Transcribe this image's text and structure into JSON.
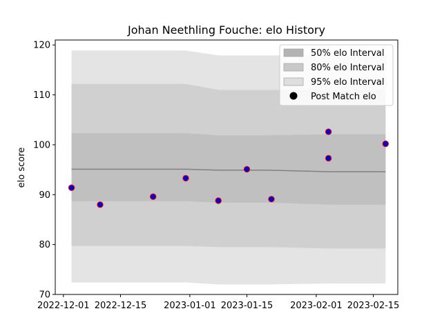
{
  "chart_data": {
    "type": "line",
    "title": "Johan Neethling Fouche: elo History",
    "xlabel": "",
    "ylabel": "elo score",
    "x_ticks": [
      "2022-12-01",
      "2022-12-15",
      "2023-01-01",
      "2023-01-15",
      "2023-02-01",
      "2023-02-15"
    ],
    "y_ticks": [
      70,
      80,
      90,
      100,
      110,
      120
    ],
    "xlim": [
      "2022-11-29",
      "2023-02-21"
    ],
    "ylim": [
      70,
      121
    ],
    "legend_position": "top-right",
    "legend": [
      {
        "label": "50% elo Interval",
        "color": "#b3b3b3"
      },
      {
        "label": "80% elo Interval",
        "color": "#c8c8c8"
      },
      {
        "label": "95% elo Interval",
        "color": "#dedede"
      },
      {
        "label": "Post Match elo",
        "color": "#000000"
      }
    ],
    "mean_line": {
      "x": [
        "2022-12-03",
        "2022-12-31",
        "2023-01-08",
        "2023-01-20",
        "2023-02-04",
        "2023-02-18"
      ],
      "y": [
        95.1,
        95.1,
        94.9,
        94.9,
        94.6,
        94.6
      ]
    },
    "bands": [
      {
        "name": "95% elo Interval",
        "color": "#e4e4e4",
        "x": [
          "2022-12-03",
          "2022-12-31",
          "2023-01-08",
          "2023-01-20",
          "2023-02-04",
          "2023-02-18"
        ],
        "upper": [
          118.9,
          118.9,
          117.9,
          117.9,
          117.9,
          117.9
        ],
        "lower": [
          72.4,
          72.4,
          72.0,
          72.0,
          72.2,
          72.2
        ]
      },
      {
        "name": "80% elo Interval",
        "color": "#d0d0d0",
        "x": [
          "2022-12-03",
          "2022-12-31",
          "2023-01-08",
          "2023-01-20",
          "2023-02-04",
          "2023-02-18"
        ],
        "upper": [
          112.2,
          112.2,
          111.0,
          111.0,
          111.0,
          111.0
        ],
        "lower": [
          79.7,
          79.7,
          79.5,
          79.5,
          79.2,
          79.2
        ]
      },
      {
        "name": "50% elo Interval",
        "color": "#c0c0c0",
        "x": [
          "2022-12-03",
          "2022-12-31",
          "2023-01-08",
          "2023-01-20",
          "2023-02-04",
          "2023-02-18"
        ],
        "upper": [
          102.3,
          102.3,
          101.9,
          101.9,
          102.1,
          102.1
        ],
        "lower": [
          88.7,
          88.7,
          88.4,
          88.4,
          88.0,
          88.0
        ]
      }
    ],
    "points": {
      "name": "Post Match elo",
      "fill": "#0000cc",
      "edge": "#ff0000",
      "x": [
        "2022-12-03",
        "2022-12-10",
        "2022-12-23",
        "2022-12-31",
        "2023-01-08",
        "2023-01-15",
        "2023-01-21",
        "2023-02-04",
        "2023-02-04",
        "2023-02-18"
      ],
      "y": [
        91.4,
        88.0,
        89.6,
        93.3,
        88.8,
        95.1,
        89.1,
        102.6,
        97.3,
        100.2
      ]
    }
  }
}
